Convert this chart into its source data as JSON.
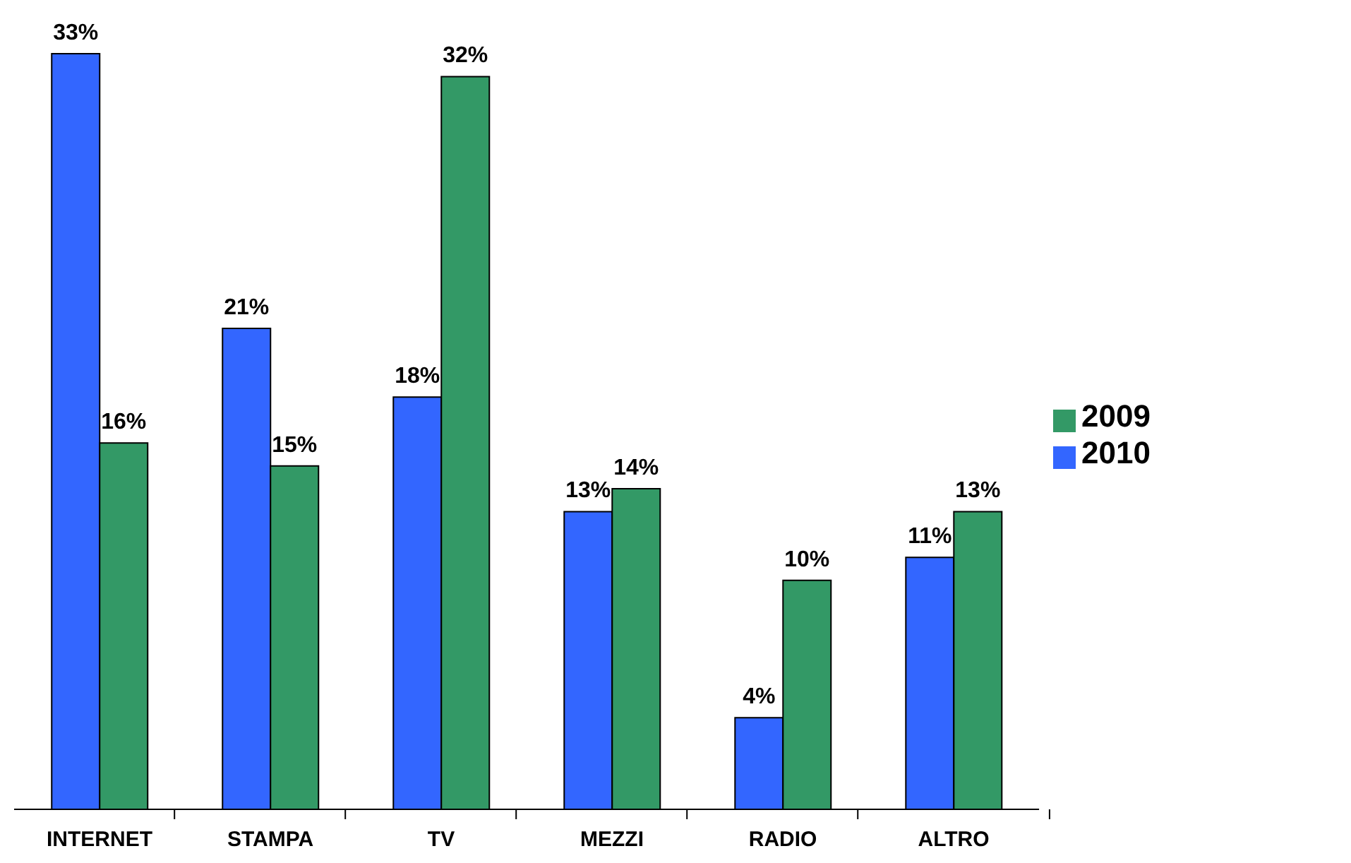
{
  "chart_data": {
    "type": "bar",
    "categories": [
      "INTERNET",
      "STAMPA",
      "TV",
      "MEZZI",
      "RADIO",
      "ALTRO"
    ],
    "series": [
      {
        "name": "2010",
        "color": "#3366ff",
        "values": [
          33,
          21,
          18,
          13,
          4,
          11
        ],
        "value_labels": [
          "33%",
          "21%",
          "18%",
          "13%",
          "4%",
          "11%"
        ]
      },
      {
        "name": "2009",
        "color": "#339966",
        "values": [
          16,
          15,
          32,
          14,
          10,
          13
        ],
        "value_labels": [
          "16%",
          "15%",
          "32%",
          "14%",
          "10%",
          "13%"
        ]
      }
    ],
    "legend": "right",
    "grid": false
  }
}
